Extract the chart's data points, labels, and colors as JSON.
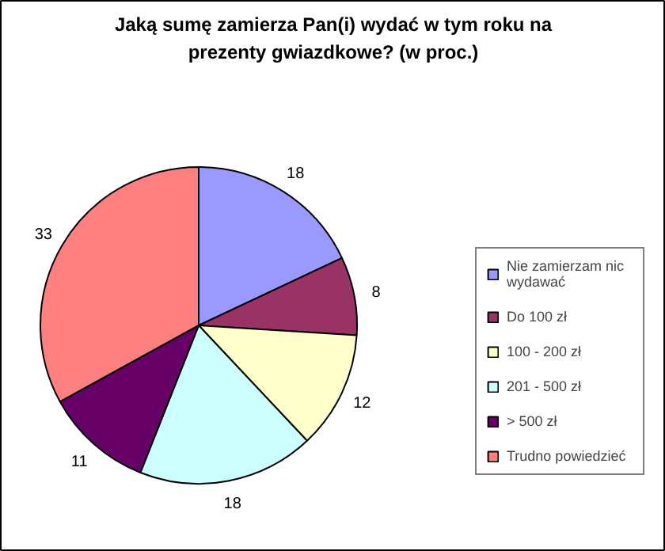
{
  "chart_data": {
    "type": "pie",
    "title": "Jaką sumę zamierza Pan(i) wydać w tym roku na prezenty gwiazdkowe? (w proc.)",
    "categories": [
      "Nie zamierzam nic wydawać",
      "Do 100 zł",
      "100 - 200 zł",
      "201 - 500 zł",
      "> 500 zł",
      "Trudno powiedzieć"
    ],
    "values": [
      18,
      8,
      12,
      18,
      11,
      33
    ],
    "colors": [
      "#9999ff",
      "#993366",
      "#ffffcc",
      "#ccffff",
      "#660066",
      "#ff8080"
    ],
    "data_labels": true,
    "legend": "right"
  }
}
